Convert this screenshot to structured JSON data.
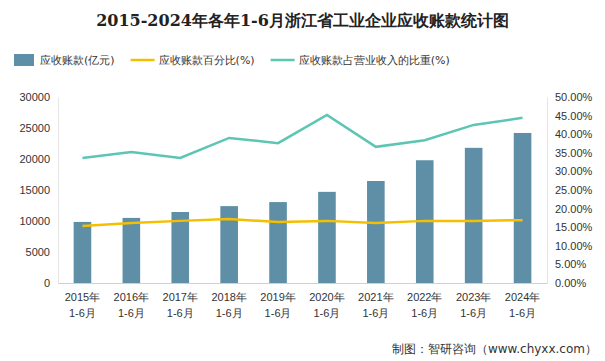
{
  "chart_data": {
    "type": "bar",
    "title": "2015-2024年各年1-6月浙江省工业企业应收账款统计图",
    "categories": [
      "2015年1-6月",
      "2016年1-6月",
      "2017年1-6月",
      "2018年1-6月",
      "2019年1-6月",
      "2020年1-6月",
      "2021年1-6月",
      "2022年1-6月",
      "2023年1-6月",
      "2024年1-6月"
    ],
    "series": [
      {
        "name": "应收账款(亿元)",
        "type": "bar",
        "color": "#5e8fa6",
        "axis": "y",
        "values": [
          9850,
          10500,
          11450,
          12400,
          13050,
          14700,
          16450,
          19800,
          21800,
          24200
        ]
      },
      {
        "name": "应收账款百分比(%)",
        "type": "line",
        "color": "#f5bf00",
        "axis": "y2",
        "values": [
          15.3,
          16.1,
          16.7,
          17.2,
          16.4,
          16.7,
          16.1,
          16.7,
          16.7,
          16.9
        ]
      },
      {
        "name": "应收账款占营业收入的比重(%)",
        "type": "line",
        "color": "#5cc5b3",
        "axis": "y2",
        "values": [
          33.6,
          35.2,
          33.6,
          39.0,
          37.6,
          45.2,
          36.6,
          38.4,
          42.5,
          44.4
        ]
      }
    ],
    "ylim": [
      0,
      30000
    ],
    "yticks": [
      0,
      5000,
      10000,
      15000,
      20000,
      25000,
      30000
    ],
    "y2lim": [
      0,
      50
    ],
    "y2ticks": [
      {
        "value": 0,
        "label": "0.00%"
      },
      {
        "value": 5,
        "label": "5.00%"
      },
      {
        "value": 10,
        "label": "10.00%"
      },
      {
        "value": 15,
        "label": "15.00%"
      },
      {
        "value": 20,
        "label": "20.00%"
      },
      {
        "value": 25,
        "label": "25.00%"
      },
      {
        "value": 30,
        "label": "30.00%"
      },
      {
        "value": 35,
        "label": "35.00%"
      },
      {
        "value": 40,
        "label": "40.00%"
      },
      {
        "value": 45,
        "label": "45.00%"
      },
      {
        "value": 50,
        "label": "50.00%"
      }
    ],
    "grid": false,
    "legend": "top",
    "source": "制图：智研咨询（www.chyxx.com）"
  }
}
